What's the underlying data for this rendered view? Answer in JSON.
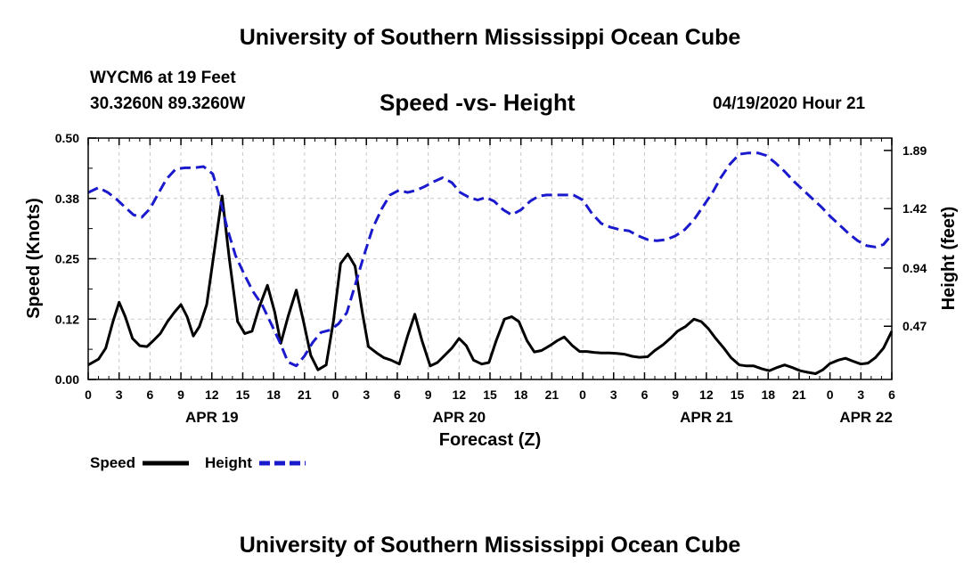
{
  "header": {
    "title": "University of Southern Mississippi Ocean Cube",
    "station": "WYCM6 at 19 Feet",
    "coords": "30.3260N 89.3260W",
    "timestamp": "04/19/2020 Hour 21"
  },
  "footer": {
    "title": "University of Southern Mississippi Ocean Cube"
  },
  "colors": {
    "speed": "#000000",
    "height": "#1a1acc",
    "grid": "#c8c8c8"
  },
  "chart_data": {
    "type": "line",
    "title": "Speed -vs- Height",
    "xlabel": "Forecast (Z)",
    "ylabel": "Speed (Knots)",
    "ylabel_right": "Height (feet)",
    "xlim": [
      0,
      78
    ],
    "ylim": [
      0,
      0.5
    ],
    "ylim_right": [
      0.04,
      1.99
    ],
    "yticks": [
      0,
      0.125,
      0.25,
      0.375,
      0.5
    ],
    "yticklabels": [
      "0.00",
      "0.12",
      "0.25",
      "0.38",
      "0.50"
    ],
    "yticks_right": [
      0.47,
      0.94,
      1.42,
      1.89
    ],
    "yticklabels_right": [
      "0.47",
      "0.94",
      "1.42",
      "1.89"
    ],
    "xticks": [
      0,
      3,
      6,
      9,
      12,
      15,
      18,
      21,
      24,
      27,
      30,
      33,
      36,
      39,
      42,
      45,
      48,
      51,
      54,
      57,
      60,
      63,
      66,
      69,
      72,
      75,
      78
    ],
    "xticklabels": [
      "0",
      "3",
      "6",
      "9",
      "12",
      "15",
      "18",
      "21",
      "0",
      "3",
      "6",
      "9",
      "12",
      "15",
      "18",
      "21",
      "0",
      "3",
      "6",
      "9",
      "12",
      "15",
      "18",
      "21",
      "0",
      "3",
      "6"
    ],
    "date_labels": [
      {
        "x": 12,
        "label": "APR 19"
      },
      {
        "x": 36,
        "label": "APR 20"
      },
      {
        "x": 60,
        "label": "APR 21"
      },
      {
        "x": 75.5,
        "label": "APR 22"
      }
    ],
    "grid": true,
    "legend": [
      {
        "name": "Speed",
        "style": "solid"
      },
      {
        "name": "Height",
        "style": "dashed"
      }
    ],
    "series": [
      {
        "name": "Speed",
        "axis": "left",
        "style": "solid",
        "x": [
          0,
          1,
          1.7,
          2.4,
          3,
          3.6,
          4.3,
          5,
          5.7,
          6.3,
          7,
          7.7,
          8.4,
          9,
          9.6,
          10.2,
          10.8,
          11.5,
          12.2,
          13,
          13.7,
          14.5,
          15.2,
          15.9,
          16.6,
          17.4,
          18.1,
          18.7,
          19.4,
          20.2,
          20.9,
          21.6,
          22.3,
          23.1,
          23.8,
          24.5,
          25.2,
          25.9,
          26.6,
          27.2,
          28,
          28.7,
          29.4,
          30.2,
          31,
          31.7,
          32.4,
          33.2,
          33.9,
          34.6,
          35.3,
          36,
          36.7,
          37.4,
          38.2,
          38.9,
          39.6,
          40.4,
          41.1,
          41.8,
          42.6,
          43.3,
          44,
          44.8,
          45.5,
          46.2,
          47,
          47.7,
          48.4,
          49.1,
          49.8,
          50.6,
          51.3,
          52.1,
          52.8,
          53.5,
          54.3,
          55,
          55.8,
          56.5,
          57.2,
          58,
          58.8,
          59.5,
          60.2,
          60.9,
          61.7,
          62.4,
          63.2,
          63.9,
          64.6,
          65.4,
          66.1,
          66.9,
          67.6,
          68.3,
          69.1,
          69.8,
          70.6,
          71.3,
          72,
          72.8,
          73.5,
          74.2,
          75,
          75.7,
          76.4,
          77.2,
          78
        ],
        "y": [
          0.03,
          0.042,
          0.065,
          0.12,
          0.16,
          0.13,
          0.085,
          0.07,
          0.068,
          0.08,
          0.095,
          0.12,
          0.14,
          0.155,
          0.13,
          0.09,
          0.11,
          0.155,
          0.26,
          0.38,
          0.25,
          0.12,
          0.095,
          0.1,
          0.15,
          0.195,
          0.14,
          0.075,
          0.13,
          0.185,
          0.12,
          0.05,
          0.02,
          0.03,
          0.12,
          0.24,
          0.26,
          0.235,
          0.14,
          0.068,
          0.055,
          0.045,
          0.04,
          0.032,
          0.09,
          0.135,
          0.08,
          0.028,
          0.035,
          0.05,
          0.065,
          0.085,
          0.07,
          0.04,
          0.032,
          0.035,
          0.08,
          0.125,
          0.13,
          0.12,
          0.08,
          0.057,
          0.06,
          0.07,
          0.08,
          0.088,
          0.07,
          0.058,
          0.058,
          0.056,
          0.055,
          0.055,
          0.054,
          0.052,
          0.048,
          0.046,
          0.047,
          0.06,
          0.072,
          0.085,
          0.1,
          0.11,
          0.125,
          0.12,
          0.105,
          0.085,
          0.065,
          0.045,
          0.03,
          0.028,
          0.028,
          0.022,
          0.018,
          0.025,
          0.03,
          0.025,
          0.018,
          0.015,
          0.012,
          0.02,
          0.033,
          0.04,
          0.044,
          0.038,
          0.032,
          0.034,
          0.045,
          0.065,
          0.1
        ]
      },
      {
        "name": "Height",
        "axis": "right",
        "style": "dashed",
        "x": [
          0,
          1,
          1.9,
          2.7,
          3.6,
          4.4,
          5.2,
          6,
          6.8,
          7.6,
          8.5,
          9.4,
          10.3,
          11.2,
          12.1,
          12.8,
          13.5,
          14.3,
          15.2,
          16,
          16.9,
          17.7,
          18.6,
          19.4,
          20.2,
          21,
          21.8,
          22.6,
          23.5,
          24.3,
          25.1,
          25.9,
          26.8,
          27.6,
          28.5,
          29.3,
          30.2,
          31,
          31.9,
          32.7,
          33.6,
          34.4,
          35.3,
          36.1,
          37,
          37.8,
          38.6,
          39.4,
          40.3,
          41.1,
          42,
          42.9,
          43.7,
          44.5,
          45.4,
          46.3,
          47.1,
          48,
          48.9,
          49.8,
          50.7,
          51.6,
          52.5,
          53.4,
          54.3,
          55.2,
          56.1,
          57,
          57.9,
          58.8,
          59.7,
          60.6,
          61.4,
          62.3,
          63.2,
          64.1,
          65,
          65.8,
          66.7,
          67.6,
          68.5,
          69.4,
          70.3,
          71.2,
          72,
          72.9,
          73.8,
          74.7,
          75.6,
          76.4,
          77.2,
          78
        ],
        "y": [
          1.55,
          1.59,
          1.55,
          1.5,
          1.43,
          1.37,
          1.35,
          1.42,
          1.54,
          1.66,
          1.74,
          1.75,
          1.75,
          1.76,
          1.7,
          1.5,
          1.26,
          1.04,
          0.88,
          0.75,
          0.64,
          0.5,
          0.34,
          0.18,
          0.15,
          0.23,
          0.34,
          0.42,
          0.44,
          0.49,
          0.58,
          0.8,
          1.05,
          1.26,
          1.42,
          1.53,
          1.57,
          1.55,
          1.57,
          1.6,
          1.64,
          1.67,
          1.63,
          1.55,
          1.51,
          1.49,
          1.51,
          1.48,
          1.41,
          1.37,
          1.41,
          1.48,
          1.52,
          1.53,
          1.53,
          1.53,
          1.53,
          1.49,
          1.38,
          1.3,
          1.27,
          1.25,
          1.24,
          1.2,
          1.17,
          1.16,
          1.17,
          1.2,
          1.25,
          1.33,
          1.44,
          1.55,
          1.67,
          1.78,
          1.86,
          1.87,
          1.87,
          1.85,
          1.79,
          1.72,
          1.64,
          1.57,
          1.5,
          1.43,
          1.36,
          1.29,
          1.22,
          1.16,
          1.12,
          1.11,
          1.13,
          1.21
        ]
      }
    ]
  }
}
